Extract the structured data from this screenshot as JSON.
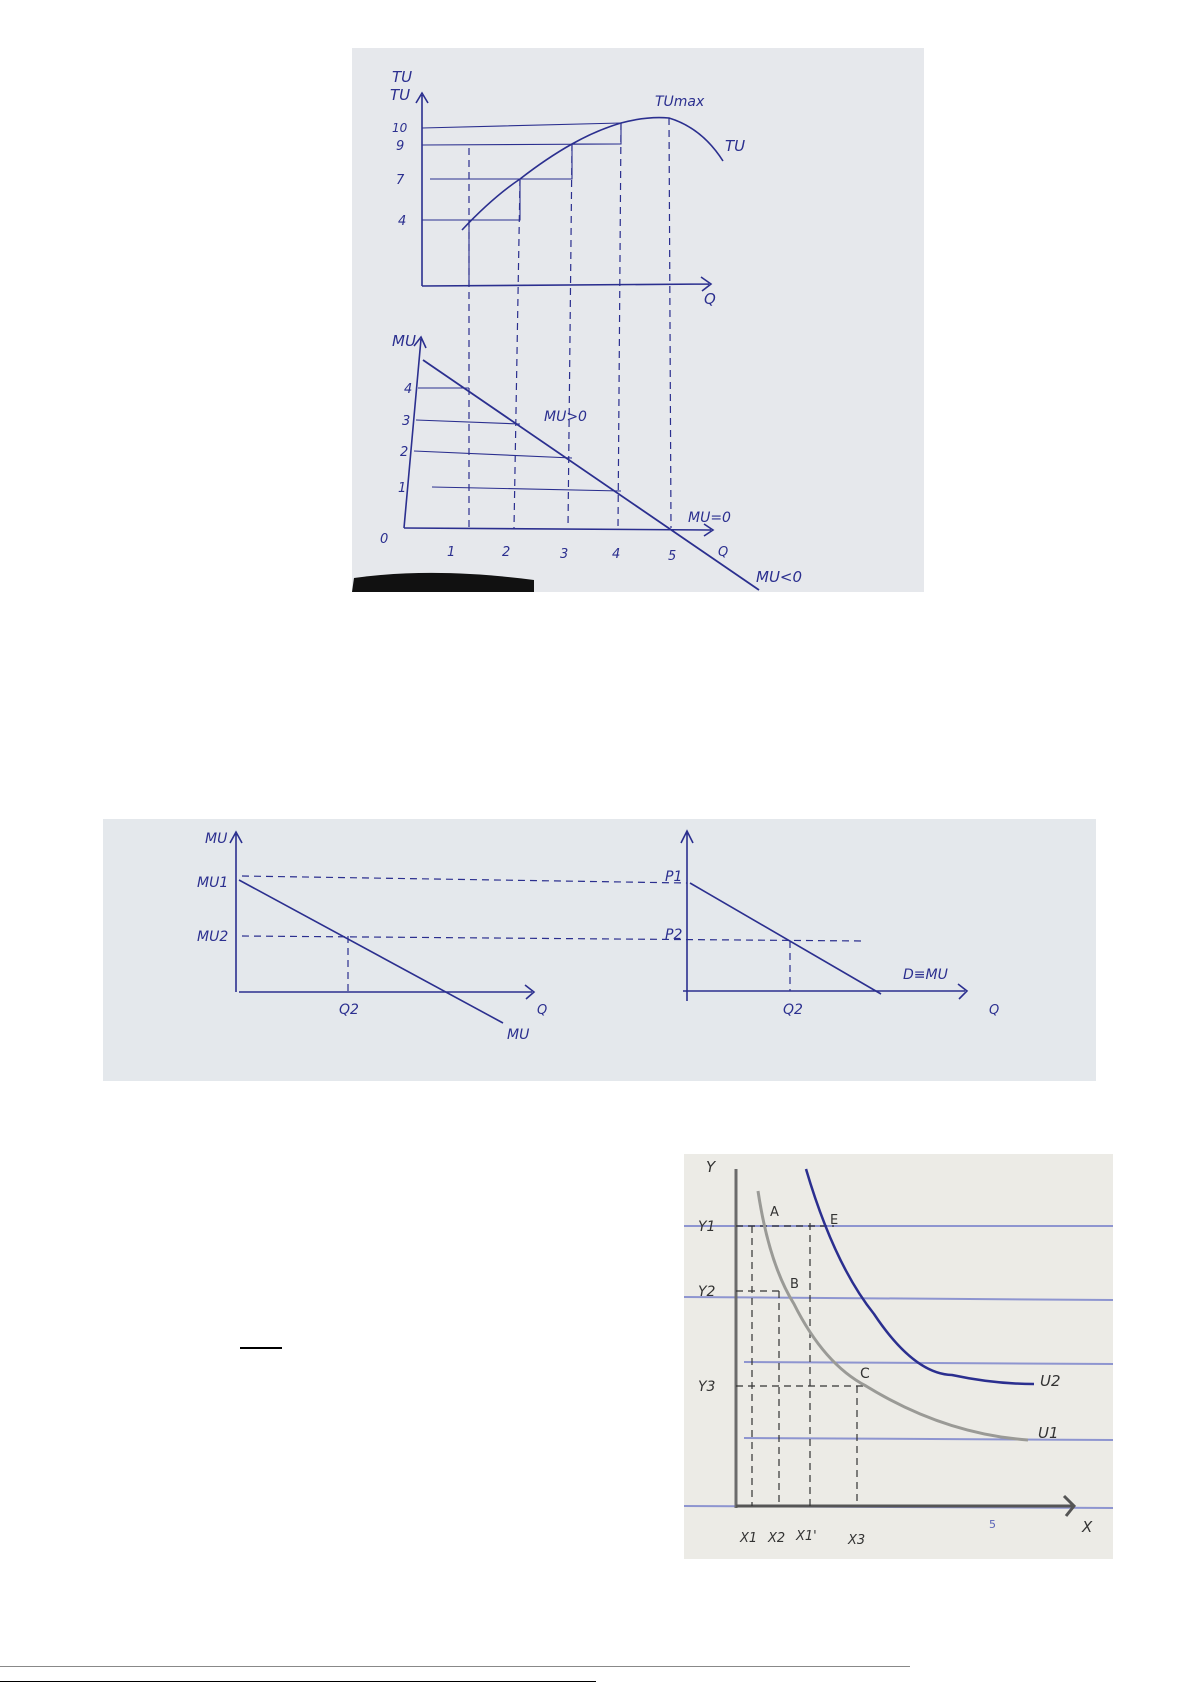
{
  "figure1": {
    "top": {
      "y_axis": "TU",
      "y_axis_overwrite": "TU",
      "x_axis": "Q",
      "y_ticks": [
        "10",
        "9",
        "7",
        "4"
      ],
      "curve_label": "TU",
      "max_label": "TUmax"
    },
    "bottom": {
      "y_axis": "MU",
      "x_axis": "Q",
      "origin": "0",
      "y_ticks": [
        "4",
        "3",
        "2",
        "1"
      ],
      "x_ticks": [
        "1",
        "2",
        "3",
        "4",
        "5"
      ],
      "positive": "MU>0",
      "zero": "MU=0",
      "negative": "MU<0"
    }
  },
  "figure2": {
    "left": {
      "y_axis": "MU",
      "mu1": "MU1",
      "mu2": "MU2",
      "q2": "Q2",
      "x_axis": "Q",
      "curve": "MU"
    },
    "right": {
      "p1": "P1",
      "p2": "P2",
      "q2": "Q2",
      "x_axis": "Q",
      "curve": "D≡MU"
    }
  },
  "figure3": {
    "y_axis": "Y",
    "x_axis": "X",
    "y_ticks": [
      "Y1",
      "Y2",
      "Y3"
    ],
    "x_ticks": [
      "X1",
      "X2",
      "X1'",
      "X3"
    ],
    "scale_mark": "5",
    "points": [
      "A",
      "E",
      "B",
      "C"
    ],
    "curves": [
      "U2",
      "U1"
    ],
    "colors": {
      "u2": "#2b2f8f",
      "u1": "#9a9a96",
      "grid": "#6f78c8"
    }
  }
}
